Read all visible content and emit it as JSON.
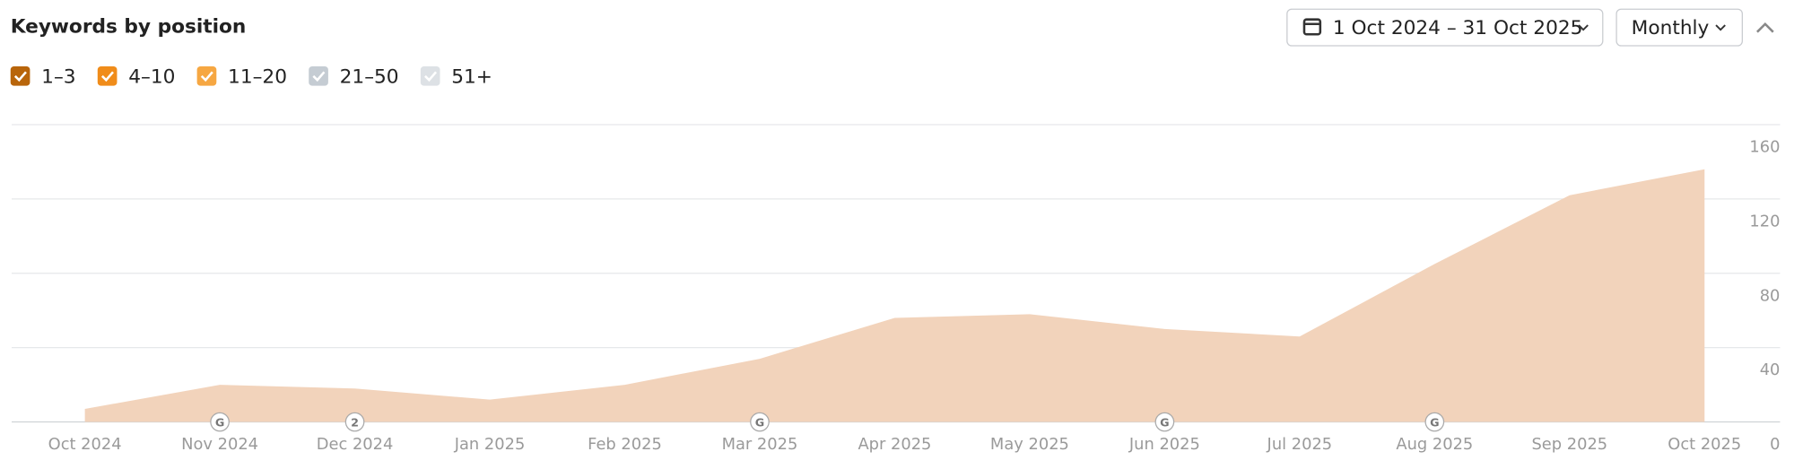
{
  "chart_data": {
    "type": "area",
    "title": "Keywords by position",
    "controls": {
      "date_range": "1 Oct 2024 – 31 Oct 2025",
      "interval": "Monthly"
    },
    "legend": [
      {
        "name": "1–3",
        "color": "#b8650b",
        "checked": true
      },
      {
        "name": "4–10",
        "color": "#f08c1a",
        "checked": true
      },
      {
        "name": "11–20",
        "color": "#f6a742",
        "checked": true
      },
      {
        "name": "21–50",
        "color": "#c5ccd3",
        "checked": true
      },
      {
        "name": "51+",
        "color": "#dde1e5",
        "checked": true
      }
    ],
    "categories": [
      "Oct 2024",
      "Nov 2024",
      "Dec 2024",
      "Jan 2025",
      "Feb 2025",
      "Mar 2025",
      "Apr 2025",
      "May 2025",
      "Jun 2025",
      "Jul 2025",
      "Aug 2025",
      "Sep 2025",
      "Oct 2025"
    ],
    "values": [
      7,
      20,
      18,
      12,
      20,
      34,
      56,
      58,
      50,
      46,
      85,
      122,
      136
    ],
    "color": "#f2d3bb",
    "ylim": [
      0,
      160
    ],
    "yticks": [
      0,
      40,
      80,
      120,
      160
    ],
    "grid": true,
    "y_axis_side": "right",
    "markers": [
      {
        "x": "Nov 2024",
        "label": "G"
      },
      {
        "x": "Dec 2024",
        "label": "2"
      },
      {
        "x": "Mar 2025",
        "label": "G"
      },
      {
        "x": "Jun 2025",
        "label": "G"
      },
      {
        "x": "Aug 2025",
        "label": "G"
      }
    ]
  }
}
